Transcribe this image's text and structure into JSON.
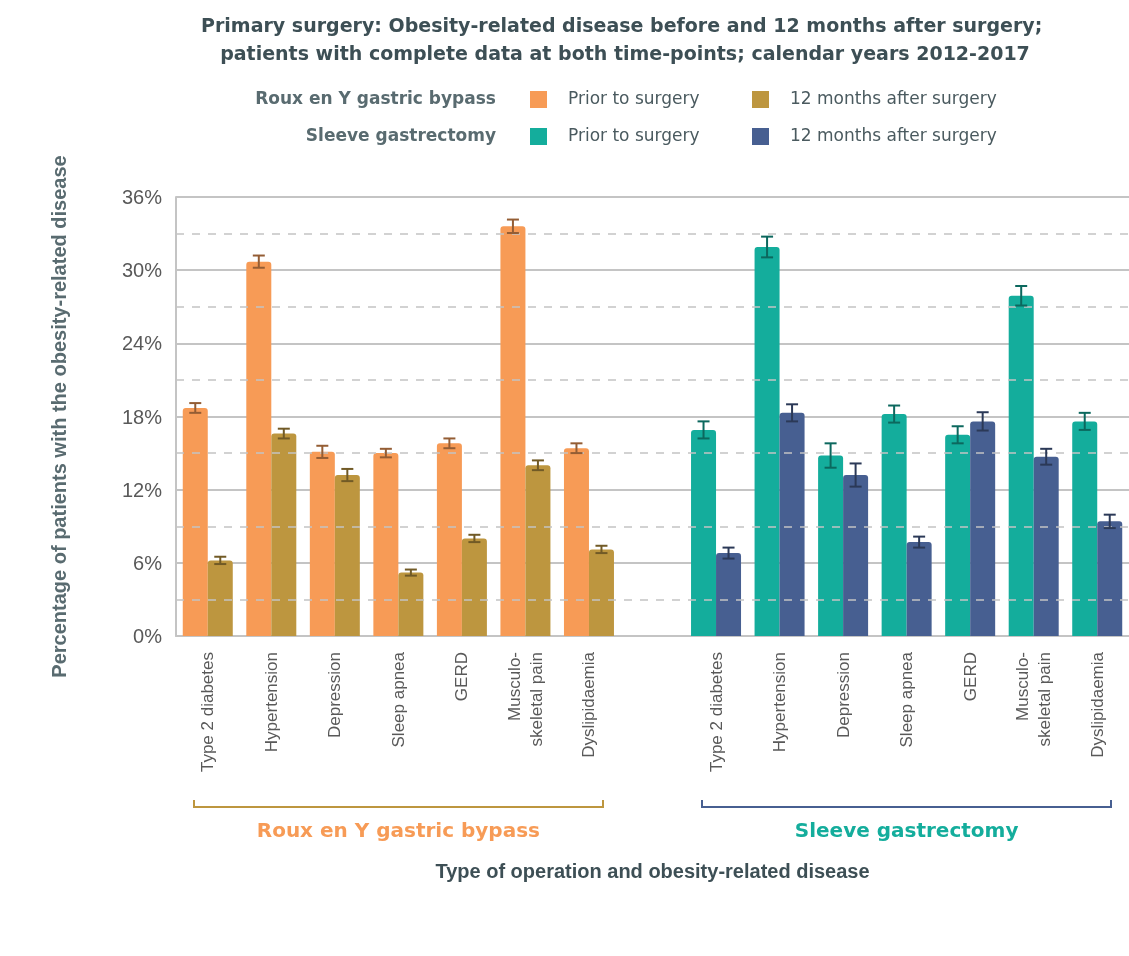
{
  "chart_data": {
    "type": "bar",
    "title": "Primary surgery: Obesity-related disease before and 12 months after surgery; patients with complete data at both time-points; calendar years 2012-2017",
    "xlabel": "Type of operation and obesity-related disease",
    "ylabel": "Percentage of patients with the obesity-related disease",
    "annotations": [
      "Roux en Y gastric bypass",
      "Sleeve gastrectomy"
    ],
    "categories": [
      "Type 2 diabetes",
      "Hypertension",
      "Depression",
      "Sleep apnea",
      "GERD",
      "Musculo-skeletal pain",
      "Dyslipidaemia",
      null,
      "Type 2 diabetes",
      "Hypertension",
      "Depression",
      "Sleep apnea",
      "GERD",
      "Musculo-skeletal pain",
      "Dyslipidaemia"
    ],
    "series": [
      {
        "name": "Prior to surgery",
        "color": "#f79b56",
        "values": [
          18.7,
          30.7,
          15.1,
          15.0,
          15.8,
          33.6,
          15.4,
          null,
          null,
          null,
          null,
          null,
          null,
          null,
          null
        ],
        "errors": [
          0.4,
          0.5,
          0.5,
          0.35,
          0.4,
          0.55,
          0.4,
          null,
          null,
          null,
          null,
          null,
          null,
          null,
          null
        ]
      },
      {
        "name": "12 months after surgery",
        "color": "#bd963f",
        "values": [
          6.2,
          16.6,
          13.2,
          5.2,
          8.0,
          14.0,
          7.1,
          null,
          null,
          null,
          null,
          null,
          null,
          null,
          null
        ],
        "errors": [
          0.3,
          0.4,
          0.5,
          0.25,
          0.3,
          0.4,
          0.3,
          null,
          null,
          null,
          null,
          null,
          null,
          null,
          null
        ]
      },
      {
        "name": "Prior to surgery",
        "color": "#14ad9c",
        "values": [
          null,
          null,
          null,
          null,
          null,
          null,
          null,
          null,
          16.9,
          31.9,
          14.8,
          18.2,
          16.5,
          27.9,
          17.6
        ],
        "errors": [
          null,
          null,
          null,
          null,
          null,
          null,
          null,
          null,
          0.7,
          0.85,
          1.0,
          0.7,
          0.7,
          0.8,
          0.7
        ]
      },
      {
        "name": "12 months after surgery",
        "color": "#475f91",
        "values": [
          null,
          null,
          null,
          null,
          null,
          null,
          null,
          null,
          6.8,
          18.3,
          13.2,
          7.7,
          17.6,
          14.7,
          9.4
        ],
        "errors": [
          null,
          null,
          null,
          null,
          null,
          null,
          null,
          null,
          0.45,
          0.7,
          0.95,
          0.45,
          0.75,
          0.65,
          0.55
        ]
      }
    ],
    "ylim": [
      0,
      36
    ],
    "yticks": [
      {
        "value": 0,
        "label": "0%"
      },
      {
        "value": 3,
        "label": null
      },
      {
        "value": 6,
        "label": "6%"
      },
      {
        "value": 9,
        "label": null
      },
      {
        "value": 12,
        "label": "12%"
      },
      {
        "value": 15,
        "label": null
      },
      {
        "value": 18,
        "label": "18%"
      },
      {
        "value": 21,
        "label": null
      },
      {
        "value": 24,
        "label": "24%"
      },
      {
        "value": 27,
        "label": null
      },
      {
        "value": 30,
        "label": "30%"
      },
      {
        "value": 33,
        "label": null
      },
      {
        "value": 36,
        "label": "36%"
      }
    ],
    "grid": "y",
    "legend": "top"
  }
}
